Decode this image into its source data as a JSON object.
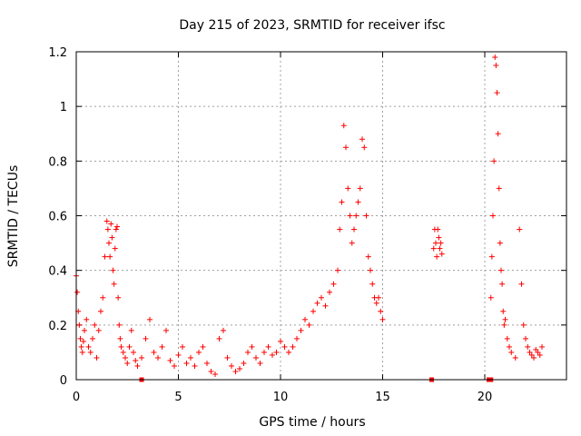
{
  "chart_data": {
    "type": "scatter",
    "title": "Day 215 of 2023, SRMTID for receiver ifsc",
    "xlabel": "GPS time / hours",
    "ylabel": "SRMTID / TECUs",
    "xlim": [
      0,
      24
    ],
    "ylim": [
      0,
      1.2
    ],
    "xticks": [
      0,
      5,
      10,
      15,
      20
    ],
    "xtick_labels": [
      "0",
      "5",
      "10",
      "15",
      "20"
    ],
    "yticks": [
      0,
      0.2,
      0.4,
      0.6,
      0.8,
      1.0,
      1.2
    ],
    "ytick_labels": [
      "0",
      "0.2",
      "0.4",
      "0.6",
      "0.8",
      "1",
      "1.2"
    ],
    "grid": true,
    "marker": "+",
    "color": "#ff0000",
    "series": [
      {
        "name": "SRMTID",
        "x": [
          0.0,
          0.05,
          0.1,
          0.15,
          0.2,
          0.25,
          0.3,
          0.35,
          0.4,
          0.5,
          0.6,
          0.7,
          0.8,
          0.9,
          1.0,
          1.1,
          1.2,
          1.3,
          1.4,
          1.5,
          1.55,
          1.6,
          1.65,
          1.7,
          1.75,
          1.8,
          1.85,
          1.9,
          1.95,
          2.0,
          2.05,
          2.1,
          2.15,
          2.2,
          2.3,
          2.4,
          2.5,
          2.6,
          2.7,
          2.8,
          2.9,
          3.0,
          3.2,
          3.4,
          3.6,
          3.8,
          4.0,
          4.2,
          4.4,
          4.6,
          4.8,
          5.0,
          5.2,
          5.4,
          5.6,
          5.8,
          6.0,
          6.2,
          6.4,
          6.6,
          6.8,
          7.0,
          7.2,
          7.4,
          7.6,
          7.8,
          8.0,
          8.2,
          8.4,
          8.6,
          8.8,
          9.0,
          9.2,
          9.4,
          9.6,
          9.8,
          10.0,
          10.2,
          10.4,
          10.6,
          10.8,
          11.0,
          11.2,
          11.4,
          11.6,
          11.8,
          12.0,
          12.2,
          12.4,
          12.6,
          12.8,
          12.9,
          13.0,
          13.1,
          13.2,
          13.3,
          13.4,
          13.5,
          13.6,
          13.7,
          13.8,
          13.9,
          14.0,
          14.1,
          14.2,
          14.3,
          14.4,
          14.5,
          14.6,
          14.7,
          14.8,
          14.9,
          15.0,
          17.5,
          17.55,
          17.6,
          17.65,
          17.7,
          17.75,
          17.8,
          17.85,
          17.9,
          20.3,
          20.35,
          20.4,
          20.45,
          20.5,
          20.55,
          20.6,
          20.65,
          20.7,
          20.75,
          20.8,
          20.85,
          20.9,
          20.95,
          21.0,
          21.1,
          21.2,
          21.3,
          21.5,
          21.7,
          21.8,
          21.9,
          22.0,
          22.1,
          22.2,
          22.3,
          22.4,
          22.5,
          22.6,
          22.7,
          22.8
        ],
        "y": [
          0.38,
          0.32,
          0.25,
          0.2,
          0.15,
          0.12,
          0.1,
          0.14,
          0.18,
          0.22,
          0.12,
          0.1,
          0.15,
          0.2,
          0.08,
          0.18,
          0.25,
          0.3,
          0.45,
          0.58,
          0.55,
          0.5,
          0.45,
          0.57,
          0.52,
          0.4,
          0.35,
          0.48,
          0.55,
          0.56,
          0.3,
          0.2,
          0.15,
          0.12,
          0.1,
          0.08,
          0.06,
          0.12,
          0.18,
          0.1,
          0.07,
          0.05,
          0.08,
          0.15,
          0.22,
          0.1,
          0.08,
          0.12,
          0.18,
          0.07,
          0.05,
          0.09,
          0.12,
          0.06,
          0.08,
          0.05,
          0.1,
          0.12,
          0.06,
          0.03,
          0.02,
          0.15,
          0.18,
          0.08,
          0.05,
          0.03,
          0.04,
          0.06,
          0.1,
          0.12,
          0.08,
          0.06,
          0.1,
          0.12,
          0.09,
          0.1,
          0.14,
          0.12,
          0.1,
          0.12,
          0.15,
          0.18,
          0.22,
          0.2,
          0.25,
          0.28,
          0.3,
          0.27,
          0.32,
          0.35,
          0.4,
          0.55,
          0.65,
          0.93,
          0.85,
          0.7,
          0.6,
          0.5,
          0.55,
          0.6,
          0.65,
          0.7,
          0.88,
          0.85,
          0.6,
          0.45,
          0.4,
          0.35,
          0.3,
          0.28,
          0.3,
          0.25,
          0.22,
          0.48,
          0.55,
          0.5,
          0.45,
          0.55,
          0.52,
          0.48,
          0.5,
          0.46,
          0.3,
          0.45,
          0.6,
          0.8,
          1.18,
          1.15,
          1.05,
          0.9,
          0.7,
          0.5,
          0.4,
          0.35,
          0.25,
          0.2,
          0.22,
          0.15,
          0.12,
          0.1,
          0.08,
          0.55,
          0.35,
          0.2,
          0.15,
          0.12,
          0.1,
          0.09,
          0.08,
          0.11,
          0.1,
          0.09,
          0.12
        ]
      }
    ],
    "baseline_markers_x": [
      3.2,
      17.4,
      20.2,
      20.3
    ]
  }
}
